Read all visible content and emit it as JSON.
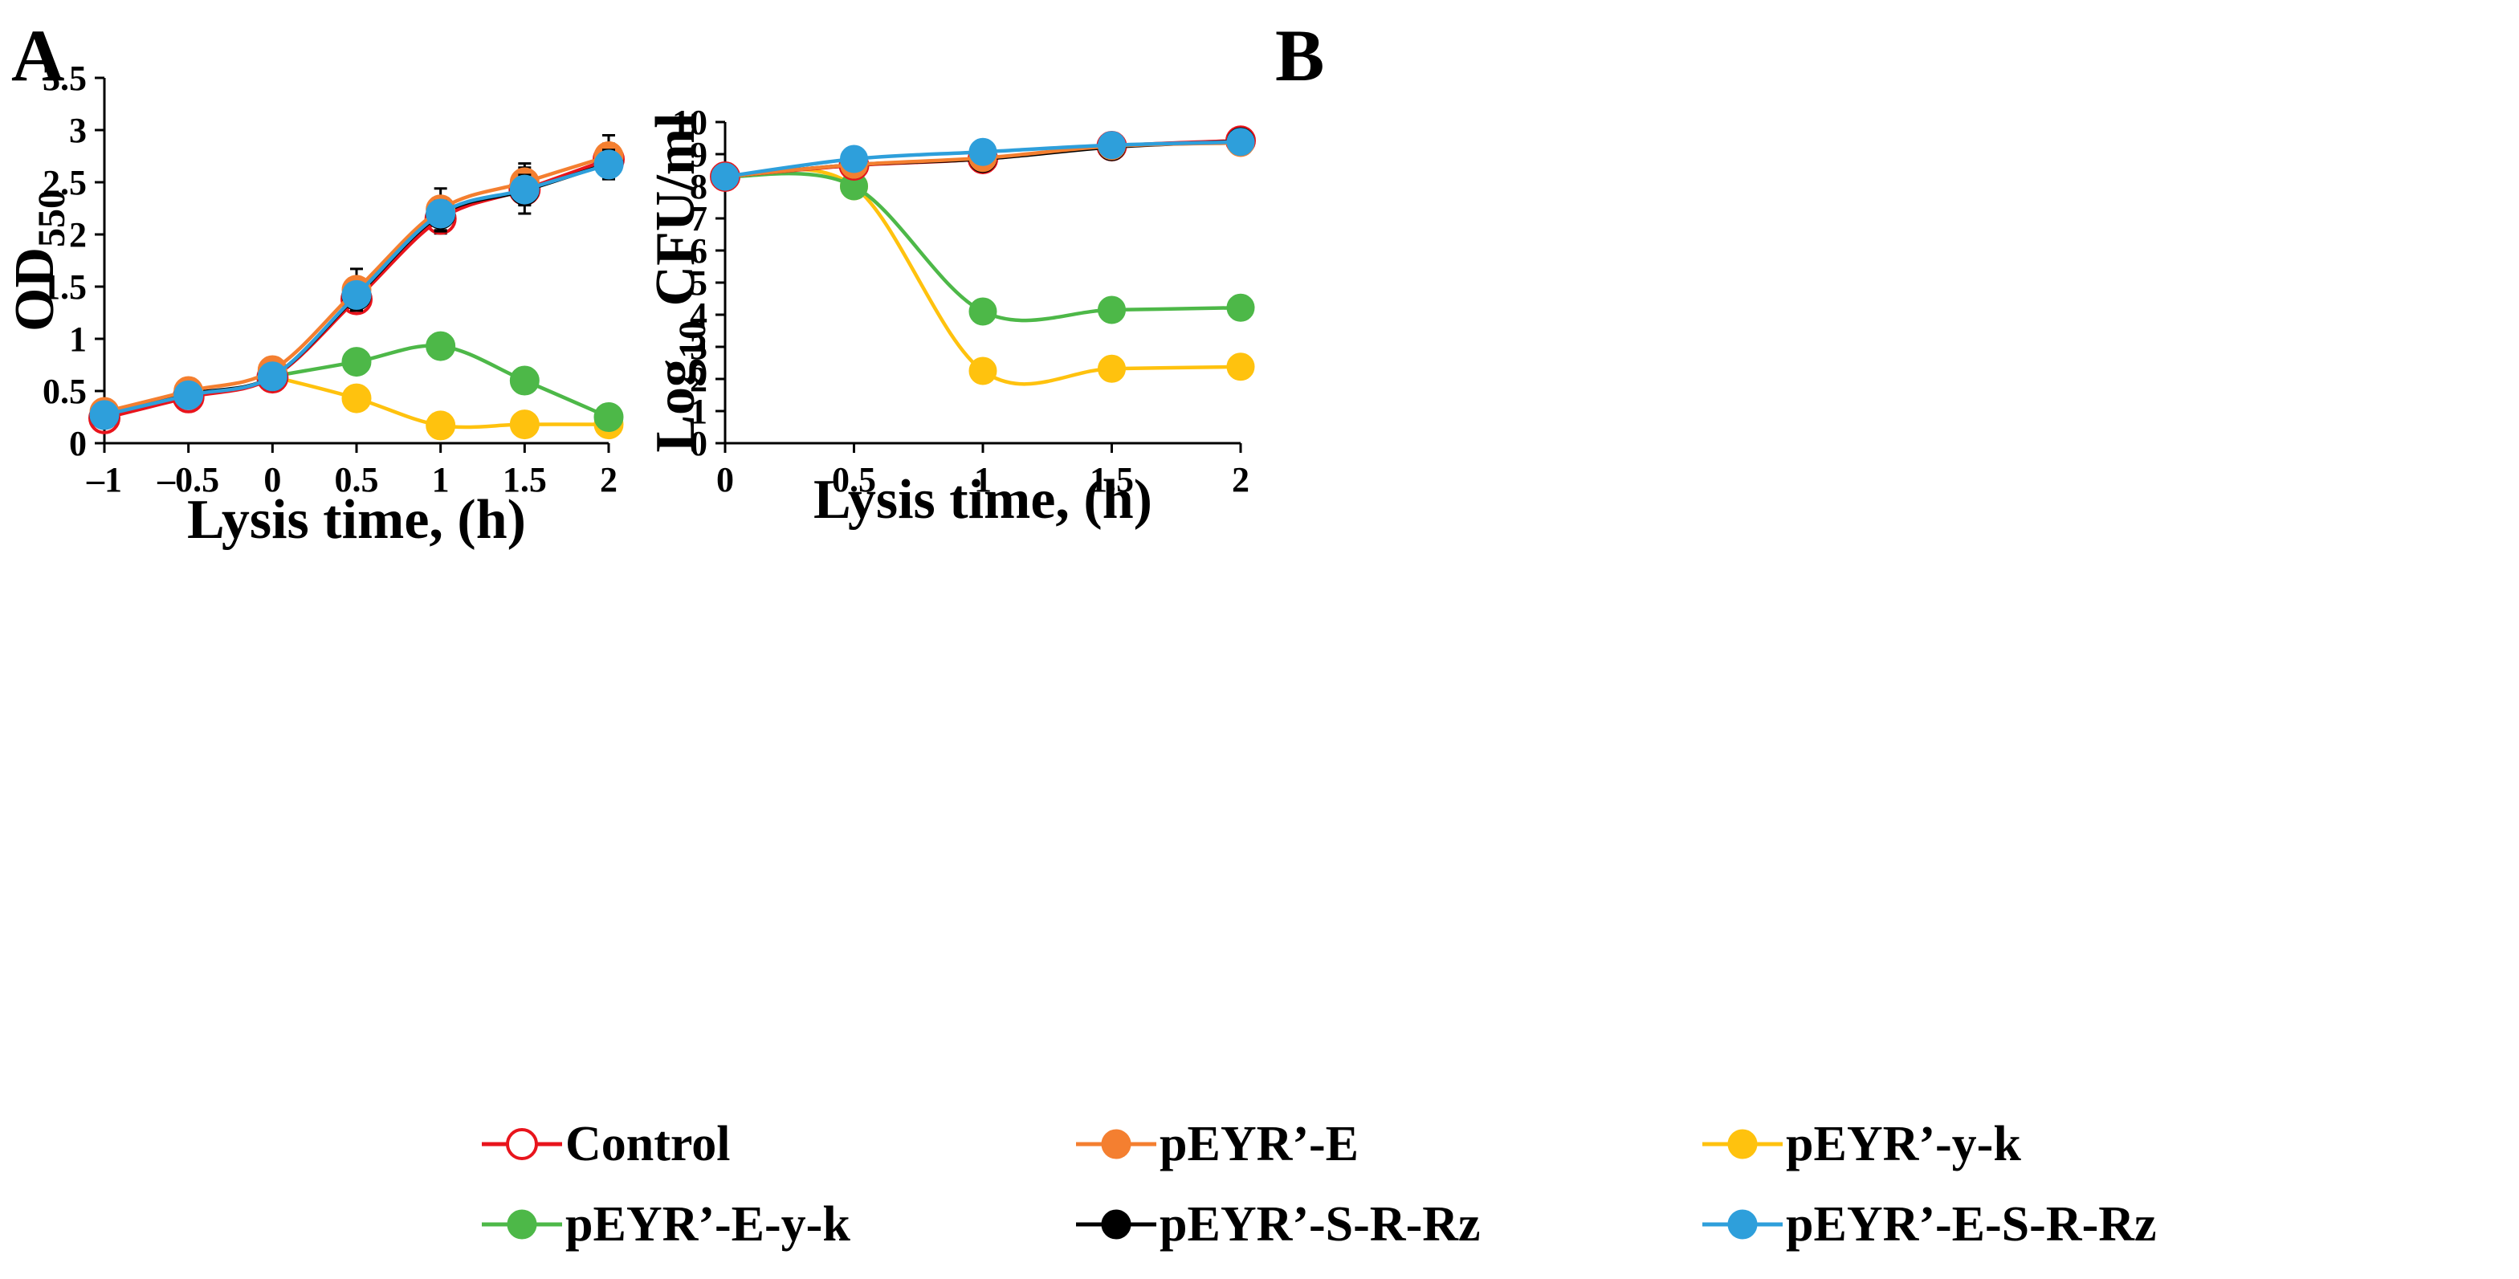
{
  "series_styles": [
    {
      "name": "Control",
      "color": "#E8141C",
      "marker": "open"
    },
    {
      "name": "pEYR’-E",
      "color": "#F47F30",
      "marker": "filled"
    },
    {
      "name": "pEYR’-y-k",
      "color": "#FFC20E",
      "marker": "filled"
    },
    {
      "name": "pEYR’-E-y-k",
      "color": "#4DB848",
      "marker": "filled"
    },
    {
      "name": "pEYR’-S-R-Rz",
      "color": "#000000",
      "marker": "filled"
    },
    {
      "name": "pEYR’-E-S-R-Rz",
      "color": "#2E9FDB",
      "marker": "filled"
    }
  ],
  "chart_data": [
    {
      "panel": "A",
      "type": "line",
      "xlabel": "Lysis time, (h)",
      "ylabel": {
        "main": "OD",
        "sub": "550"
      },
      "xlim": [
        -1,
        2
      ],
      "ylim": [
        0,
        3.5
      ],
      "xticks": [
        "–1",
        "–0.5",
        "0",
        "0.5",
        "1",
        "1.5",
        "2"
      ],
      "xtick_values": [
        -1,
        -0.5,
        0,
        0.5,
        1,
        1.5,
        2
      ],
      "yticks": [
        "0",
        "0.5",
        "1",
        "1.5",
        "2",
        "2.5",
        "3",
        "3.5"
      ],
      "ytick_values": [
        0,
        0.5,
        1,
        1.5,
        2,
        2.5,
        3,
        3.5
      ],
      "series": [
        {
          "name": "Control",
          "x": [
            -1,
            -0.5,
            0,
            0.5,
            1,
            1.5,
            2
          ],
          "values": [
            0.24,
            0.44,
            0.63,
            1.38,
            2.15,
            2.43,
            2.72
          ],
          "error": [
            0.04,
            0.06,
            0.06,
            0.1,
            0.14,
            0.15,
            0.15
          ]
        },
        {
          "name": "pEYR’-E",
          "x": [
            -1,
            -0.5,
            0,
            0.5,
            1,
            1.5,
            2
          ],
          "values": [
            0.3,
            0.5,
            0.7,
            1.47,
            2.24,
            2.5,
            2.75
          ],
          "error": [
            0.03,
            0.08,
            0.05,
            0.2,
            0.2,
            0.18,
            0.2
          ]
        },
        {
          "name": "pEYR’-S-R-Rz",
          "x": [
            -1,
            -0.5,
            0,
            0.5,
            1,
            1.5,
            2
          ],
          "values": [
            0.27,
            0.47,
            0.64,
            1.41,
            2.19,
            2.42,
            2.68
          ],
          "error": [
            0.03,
            0.05,
            0.1,
            0.12,
            0.16,
            0.22,
            0.15
          ]
        },
        {
          "name": "pEYR’-E-S-R-Rz",
          "x": [
            -1,
            -0.5,
            0,
            0.5,
            1,
            1.5,
            2
          ],
          "values": [
            0.27,
            0.46,
            0.64,
            1.42,
            2.2,
            2.43,
            2.67
          ],
          "error": [
            0.03,
            0.05,
            0.06,
            0.1,
            0.12,
            0.14,
            0.14
          ]
        },
        {
          "name": "pEYR’-E-y-k",
          "x": [
            0,
            0.5,
            1,
            1.5,
            2
          ],
          "values": [
            0.64,
            0.78,
            0.93,
            0.6,
            0.25
          ],
          "error": [
            0,
            0.11,
            0.06,
            0.09,
            0
          ]
        },
        {
          "name": "pEYR’-y-k",
          "x": [
            0,
            0.5,
            1,
            1.5,
            2
          ],
          "values": [
            0.64,
            0.43,
            0.17,
            0.18,
            0.18
          ],
          "error": [
            0,
            0,
            0,
            0,
            0
          ]
        }
      ]
    },
    {
      "panel": "B",
      "type": "line",
      "xlabel": "Lysis time, (h)",
      "ylabel": {
        "main": "Log",
        "sub": "10",
        "rest": " CFU/ml"
      },
      "xlim": [
        0,
        2
      ],
      "ylim": [
        0,
        10
      ],
      "xticks": [
        "0",
        "0.5",
        "1",
        "1.5",
        "2"
      ],
      "xtick_values": [
        0,
        0.5,
        1,
        1.5,
        2
      ],
      "yticks": [
        "0",
        "1",
        "2",
        "3",
        "4",
        "5",
        "6",
        "7",
        "8",
        "9",
        "10"
      ],
      "ytick_values": [
        0,
        1,
        2,
        3,
        4,
        5,
        6,
        7,
        8,
        9,
        10
      ],
      "series": [
        {
          "name": "Control",
          "x": [
            0,
            0.5,
            1,
            1.5,
            2
          ],
          "values": [
            8.3,
            8.65,
            8.85,
            9.25,
            9.42
          ]
        },
        {
          "name": "pEYR’-E",
          "x": [
            0,
            0.5,
            1,
            1.5,
            2
          ],
          "values": [
            8.3,
            8.67,
            8.88,
            9.25,
            9.35
          ]
        },
        {
          "name": "pEYR’-S-R-Rz",
          "x": [
            0,
            0.5,
            1,
            1.5,
            2
          ],
          "values": [
            8.3,
            8.67,
            8.85,
            9.22,
            9.4
          ]
        },
        {
          "name": "pEYR’-E-S-R-Rz",
          "x": [
            0,
            0.5,
            1,
            1.5,
            2
          ],
          "values": [
            8.3,
            8.85,
            9.07,
            9.28,
            9.38
          ]
        },
        {
          "name": "pEYR’-E-y-k",
          "x": [
            0,
            0.5,
            1,
            1.5,
            2
          ],
          "values": [
            8.3,
            8.0,
            4.1,
            4.15,
            4.22
          ]
        },
        {
          "name": "pEYR’-y-k",
          "x": [
            0,
            0.5,
            1,
            1.5,
            2
          ],
          "values": [
            8.3,
            8.0,
            2.25,
            2.32,
            2.38
          ]
        }
      ]
    }
  ]
}
